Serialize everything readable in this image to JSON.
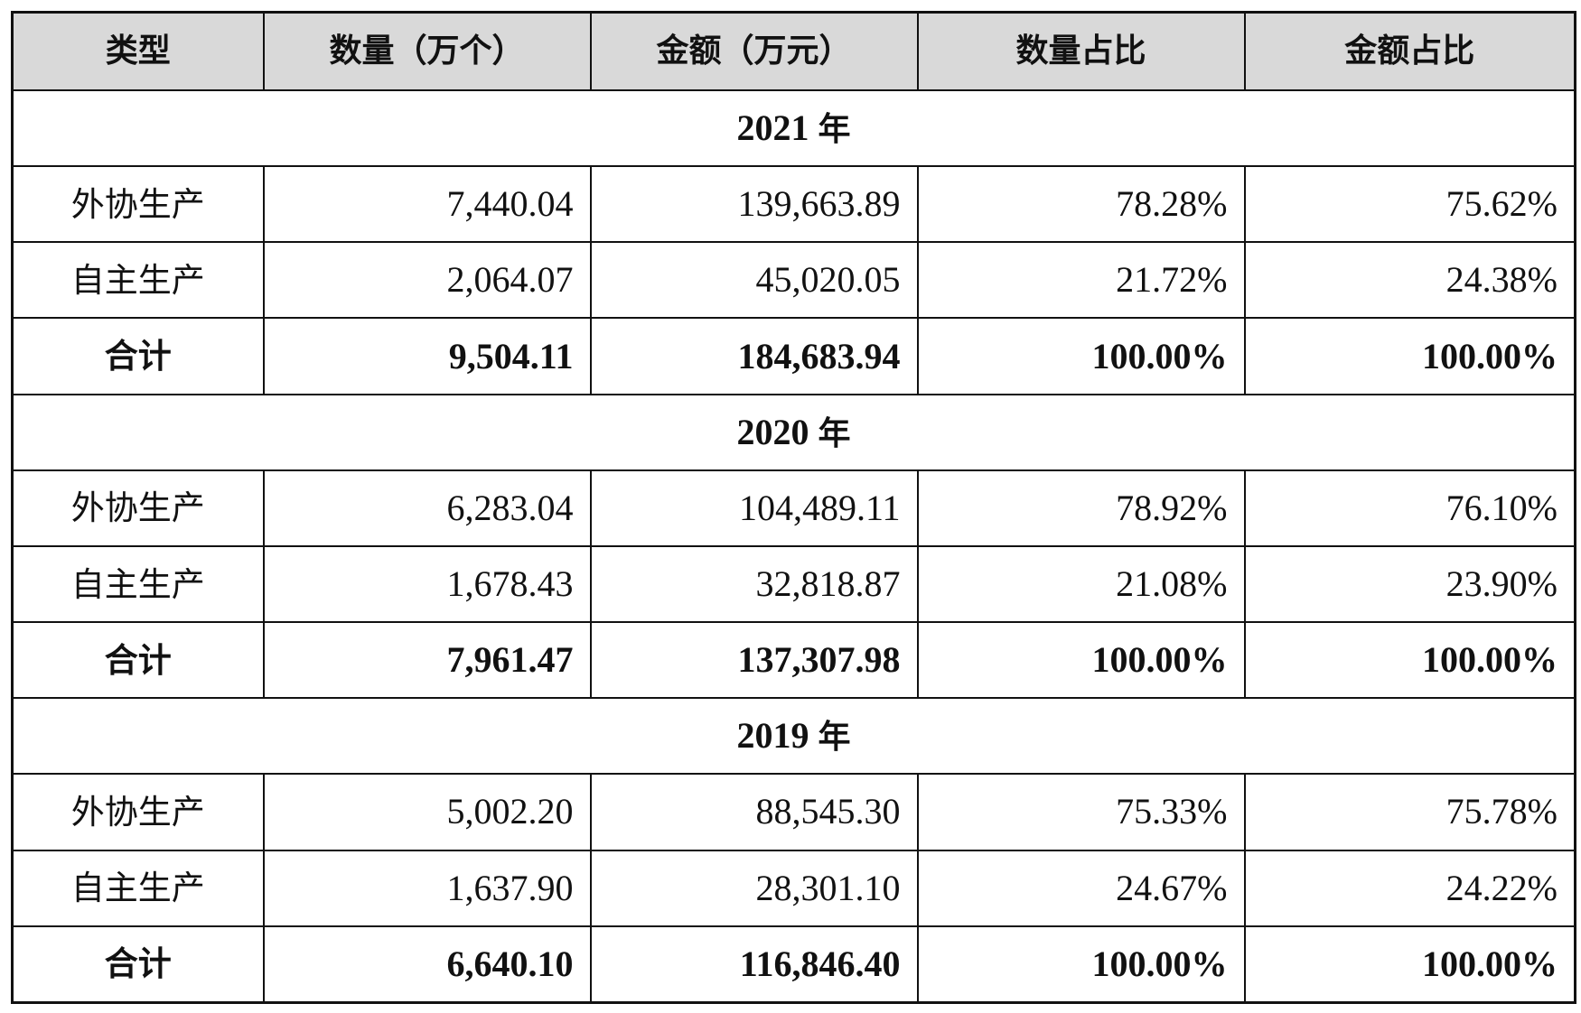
{
  "table": {
    "headers": [
      "类型",
      "数量（万个）",
      "金额（万元）",
      "数量占比",
      "金额占比"
    ],
    "year_suffix": "年",
    "sections": [
      {
        "year": "2021",
        "rows": [
          {
            "type": "外协生产",
            "quantity": "7,440.04",
            "amount": "139,663.89",
            "quantity_share": "78.28%",
            "amount_share": "75.62%"
          },
          {
            "type": "自主生产",
            "quantity": "2,064.07",
            "amount": "45,020.05",
            "quantity_share": "21.72%",
            "amount_share": "24.38%"
          }
        ],
        "total": {
          "type": "合计",
          "quantity": "9,504.11",
          "amount": "184,683.94",
          "quantity_share": "100.00%",
          "amount_share": "100.00%"
        }
      },
      {
        "year": "2020",
        "rows": [
          {
            "type": "外协生产",
            "quantity": "6,283.04",
            "amount": "104,489.11",
            "quantity_share": "78.92%",
            "amount_share": "76.10%"
          },
          {
            "type": "自主生产",
            "quantity": "1,678.43",
            "amount": "32,818.87",
            "quantity_share": "21.08%",
            "amount_share": "23.90%"
          }
        ],
        "total": {
          "type": "合计",
          "quantity": "7,961.47",
          "amount": "137,307.98",
          "quantity_share": "100.00%",
          "amount_share": "100.00%"
        }
      },
      {
        "year": "2019",
        "rows": [
          {
            "type": "外协生产",
            "quantity": "5,002.20",
            "amount": "88,545.30",
            "quantity_share": "75.33%",
            "amount_share": "75.78%"
          },
          {
            "type": "自主生产",
            "quantity": "1,637.90",
            "amount": "28,301.10",
            "quantity_share": "24.67%",
            "amount_share": "24.22%"
          }
        ],
        "total": {
          "type": "合计",
          "quantity": "6,640.10",
          "amount": "116,846.40",
          "quantity_share": "100.00%",
          "amount_share": "100.00%"
        }
      }
    ]
  },
  "colors": {
    "header_background": "#d9d9d9",
    "border": "#111111",
    "text": "#111111",
    "background": "#ffffff"
  }
}
